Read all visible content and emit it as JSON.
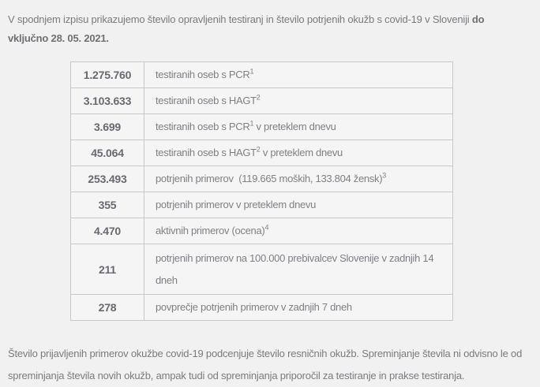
{
  "page": {
    "background": "#f1f1f2",
    "table_border_color": "#c8c8ca",
    "text_color": "#7b7b7e",
    "number_color": "#686870"
  },
  "intro": {
    "text_normal": "V spodnjem izpisu prikazujemo število opravljenih testiranj in število potrjenih okužb s covid-19 v Sloveniji ",
    "text_bold": "do vključno 28. 05. 2021."
  },
  "table": {
    "rows": [
      {
        "value": "1.275.760",
        "desc_pre": "testiranih oseb s PCR",
        "desc_sup": "1",
        "desc_post": ""
      },
      {
        "value": "3.103.633",
        "desc_pre": "testiranih oseb s HAGT",
        "desc_sup": "2",
        "desc_post": ""
      },
      {
        "value": "3.699",
        "desc_pre": "testiranih oseb s PCR",
        "desc_sup": "1",
        "desc_post": " v preteklem dnevu"
      },
      {
        "value": "45.064",
        "desc_pre": "testiranih oseb s HAGT",
        "desc_sup": "2",
        "desc_post": " v preteklem dnevu"
      },
      {
        "value": "253.493",
        "desc_pre": "potrjenih primerov  (119.665 moških, 133.804 žensk)",
        "desc_sup": "3",
        "desc_post": ""
      },
      {
        "value": "355",
        "desc_pre": "potrjenih primerov v preteklem dnevu",
        "desc_sup": "",
        "desc_post": ""
      },
      {
        "value": "4.470",
        "desc_pre": "aktivnih primerov (ocena)",
        "desc_sup": "4",
        "desc_post": ""
      },
      {
        "value": "211",
        "desc_pre": "potrjenih primerov na 100.000 prebivalcev Slovenije v zadnjih 14 dneh",
        "desc_sup": "",
        "desc_post": ""
      },
      {
        "value": "278",
        "desc_pre": "povprečje potrjenih primerov v zadnjih 7 dneh",
        "desc_sup": "",
        "desc_post": ""
      }
    ]
  },
  "footer": {
    "text": "Število prijavljenih primerov okužbe covid-19 podcenjuje število resničnih okužb. Spreminjanje števila ni odvisno le od spreminjanja števila novih okužb, ampak tudi od spreminjanja priporočil za testiranje in prakse testiranja."
  }
}
